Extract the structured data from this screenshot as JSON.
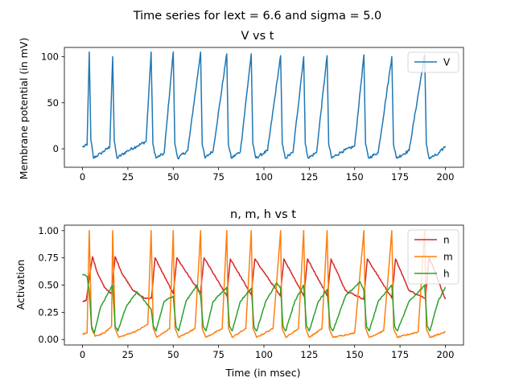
{
  "figure": {
    "suptitle": "Time series for Iext = 6.6 and sigma = 5.0"
  },
  "chart_data": [
    {
      "type": "line",
      "title": "V vs t",
      "xlabel": "",
      "ylabel": "Membrane potential (in mV)",
      "xlim": [
        -10,
        210
      ],
      "ylim": [
        -20,
        110
      ],
      "xticks": [
        0,
        25,
        50,
        75,
        100,
        125,
        150,
        175,
        200
      ],
      "yticks": [
        0,
        50,
        100
      ],
      "legend": "top-right",
      "spike_times": [
        3.7,
        16.6,
        37.8,
        50.0,
        65.1,
        79.5,
        93.0,
        109.2,
        121.9,
        134.8,
        155.1,
        170.5,
        188.6
      ],
      "series": [
        {
          "name": "V",
          "color": "#1f77b4",
          "x": [
            0,
            2.5,
            3.7,
            4.6,
            6.0,
            10.0,
            15.0,
            16.6,
            17.5,
            19.0,
            25.0,
            30.0,
            35.0,
            37.8,
            38.8,
            40.5,
            45.0,
            50.0,
            50.9,
            52.5,
            58.0,
            65.1,
            66.0,
            67.5,
            72.0,
            79.5,
            80.4,
            82.0,
            87.0,
            93.0,
            93.9,
            95.5,
            102.0,
            109.2,
            110.1,
            111.7,
            116.0,
            121.9,
            122.8,
            124.4,
            129.0,
            134.8,
            135.7,
            137.3,
            143.0,
            150.0,
            155.1,
            156.0,
            157.6,
            163.0,
            170.5,
            171.4,
            173.0,
            180.0,
            188.6,
            189.5,
            191.0,
            196.0,
            200.0
          ],
          "y": [
            2,
            4,
            105,
            10,
            -10,
            -5,
            2,
            100,
            8,
            -10,
            -2,
            3,
            8,
            105,
            5,
            -10,
            -5,
            105,
            5,
            -10,
            -2,
            105,
            5,
            -10,
            -2,
            103,
            5,
            -10,
            -3,
            103,
            5,
            -10,
            -2,
            101,
            5,
            -10,
            -4,
            100,
            5,
            -10,
            -4,
            101,
            5,
            -10,
            -3,
            3,
            102,
            5,
            -10,
            -4,
            100,
            5,
            -10,
            -2,
            102,
            5,
            -10,
            -6,
            3
          ]
        }
      ]
    },
    {
      "type": "line",
      "title": "n, m, h vs t",
      "xlabel": "Time (in msec)",
      "ylabel": "Activation",
      "xlim": [
        -10,
        210
      ],
      "ylim": [
        -0.05,
        1.05
      ],
      "xticks": [
        0,
        25,
        50,
        75,
        100,
        125,
        150,
        175,
        200
      ],
      "yticks": [
        0.0,
        0.25,
        0.5,
        0.75,
        1.0
      ],
      "legend": "top-right",
      "spike_times": [
        3.7,
        16.6,
        37.8,
        50.0,
        65.1,
        79.5,
        93.0,
        109.2,
        121.9,
        134.8,
        155.1,
        170.5,
        188.6
      ],
      "series": [
        {
          "name": "n",
          "color": "#d62728",
          "x": [
            0,
            2,
            4,
            5.5,
            8,
            12,
            16,
            18,
            22,
            28,
            34,
            38,
            40,
            50,
            52,
            65,
            67,
            79.5,
            81.5,
            93,
            95,
            109,
            111,
            122,
            124,
            135,
            137,
            145,
            155,
            157,
            170.5,
            172.5,
            180,
            189,
            191,
            200
          ],
          "y": [
            0.35,
            0.36,
            0.6,
            0.76,
            0.62,
            0.48,
            0.42,
            0.76,
            0.6,
            0.45,
            0.38,
            0.38,
            0.75,
            0.42,
            0.75,
            0.42,
            0.75,
            0.4,
            0.74,
            0.41,
            0.74,
            0.4,
            0.74,
            0.4,
            0.74,
            0.4,
            0.74,
            0.45,
            0.37,
            0.74,
            0.38,
            0.74,
            0.45,
            0.38,
            0.76,
            0.37
          ]
        },
        {
          "name": "m",
          "color": "#ff7f0e",
          "x": [
            0,
            2.5,
            3.7,
            5,
            7,
            12,
            16,
            16.6,
            18,
            20,
            30,
            36,
            37.8,
            39,
            41,
            48,
            50,
            51,
            53,
            62,
            65.1,
            66,
            68,
            77,
            79.5,
            80.5,
            82.5,
            90,
            93,
            94,
            96,
            105,
            109.2,
            110,
            112,
            119,
            121.9,
            123,
            125,
            132,
            134.8,
            136,
            138,
            150,
            155.1,
            156,
            158,
            166,
            170.5,
            171.5,
            173.5,
            185,
            188.6,
            189.5,
            191.5,
            200
          ],
          "y": [
            0.05,
            0.06,
            1.0,
            0.1,
            0.03,
            0.06,
            0.12,
            1.0,
            0.1,
            0.02,
            0.08,
            0.14,
            1.0,
            0.1,
            0.02,
            0.1,
            1.0,
            0.1,
            0.02,
            0.1,
            1.0,
            0.1,
            0.02,
            0.1,
            1.0,
            0.1,
            0.02,
            0.1,
            1.0,
            0.1,
            0.02,
            0.1,
            1.0,
            0.1,
            0.02,
            0.1,
            1.0,
            0.1,
            0.02,
            0.1,
            1.0,
            0.1,
            0.02,
            0.06,
            1.0,
            0.1,
            0.02,
            0.08,
            1.0,
            0.1,
            0.02,
            0.07,
            1.0,
            0.1,
            0.02,
            0.07
          ]
        },
        {
          "name": "h",
          "color": "#2ca02c",
          "x": [
            0,
            2.5,
            3.7,
            5,
            6.5,
            10,
            16.6,
            18,
            19.5,
            24,
            30,
            37.8,
            39,
            40.5,
            45,
            50,
            51.5,
            53,
            57,
            63,
            65.1,
            66.5,
            68,
            72,
            79.5,
            81,
            82.5,
            87,
            93,
            94.5,
            96,
            101,
            107,
            109.2,
            110.5,
            112,
            117,
            121.9,
            123.5,
            125,
            130,
            134.8,
            136.5,
            138,
            145,
            153,
            155.1,
            156.5,
            158,
            163,
            170.5,
            172,
            173.5,
            180,
            188.6,
            190,
            191.5,
            196,
            200
          ],
          "y": [
            0.6,
            0.58,
            0.45,
            0.12,
            0.06,
            0.3,
            0.5,
            0.12,
            0.08,
            0.3,
            0.44,
            0.28,
            0.12,
            0.08,
            0.35,
            0.4,
            0.12,
            0.08,
            0.35,
            0.5,
            0.4,
            0.12,
            0.08,
            0.35,
            0.48,
            0.12,
            0.08,
            0.35,
            0.47,
            0.12,
            0.08,
            0.35,
            0.52,
            0.47,
            0.12,
            0.08,
            0.35,
            0.5,
            0.12,
            0.08,
            0.35,
            0.46,
            0.12,
            0.08,
            0.4,
            0.53,
            0.45,
            0.12,
            0.08,
            0.35,
            0.5,
            0.12,
            0.08,
            0.35,
            0.5,
            0.12,
            0.08,
            0.35,
            0.48
          ]
        }
      ]
    }
  ]
}
